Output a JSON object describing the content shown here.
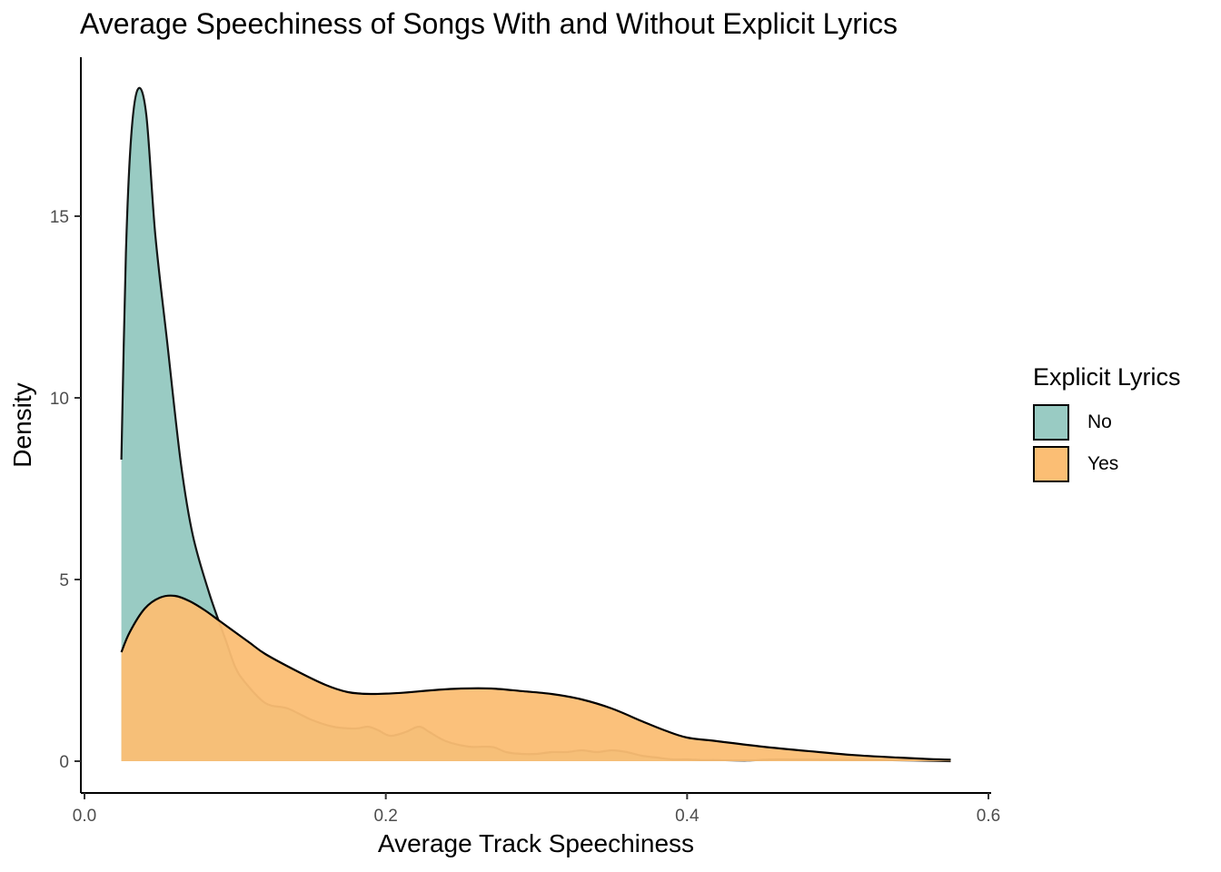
{
  "chart_data": {
    "type": "area",
    "title": "Average Speechiness of Songs With and Without Explicit Lyrics",
    "xlabel": "Average Track Speechiness",
    "ylabel": "Density",
    "xlim": [
      0.0,
      0.6
    ],
    "ylim": [
      0,
      19
    ],
    "x_ticks": [
      0.0,
      0.2,
      0.4,
      0.6
    ],
    "x_tick_labels": [
      "0.0",
      "0.2",
      "0.4",
      "0.6"
    ],
    "y_ticks": [
      0,
      5,
      10,
      15
    ],
    "y_tick_labels": [
      "0",
      "5",
      "10",
      "15"
    ],
    "grid": false,
    "legend": {
      "title": "Explicit Lyrics",
      "position": "right"
    },
    "series": [
      {
        "name": "No",
        "color": "#99cbc3",
        "opacity": 1.0,
        "points": [
          [
            0.0245,
            8.3
          ],
          [
            0.0275,
            14.0
          ],
          [
            0.031,
            17.2
          ],
          [
            0.0355,
            18.5
          ],
          [
            0.041,
            17.8
          ],
          [
            0.047,
            14.5
          ],
          [
            0.055,
            11.5
          ],
          [
            0.064,
            8.2
          ],
          [
            0.072,
            6.2
          ],
          [
            0.083,
            4.6
          ],
          [
            0.094,
            3.3
          ],
          [
            0.1,
            2.6
          ],
          [
            0.106,
            2.2
          ],
          [
            0.12,
            1.6
          ],
          [
            0.135,
            1.45
          ],
          [
            0.15,
            1.15
          ],
          [
            0.165,
            0.95
          ],
          [
            0.18,
            0.9
          ],
          [
            0.188,
            0.95
          ],
          [
            0.195,
            0.85
          ],
          [
            0.203,
            0.7
          ],
          [
            0.213,
            0.8
          ],
          [
            0.222,
            0.95
          ],
          [
            0.229,
            0.8
          ],
          [
            0.24,
            0.55
          ],
          [
            0.255,
            0.4
          ],
          [
            0.265,
            0.4
          ],
          [
            0.272,
            0.38
          ],
          [
            0.28,
            0.25
          ],
          [
            0.29,
            0.2
          ],
          [
            0.3,
            0.2
          ],
          [
            0.31,
            0.25
          ],
          [
            0.32,
            0.25
          ],
          [
            0.33,
            0.3
          ],
          [
            0.34,
            0.25
          ],
          [
            0.35,
            0.3
          ],
          [
            0.36,
            0.25
          ],
          [
            0.37,
            0.15
          ],
          [
            0.38,
            0.1
          ],
          [
            0.39,
            0.05
          ],
          [
            0.4,
            0.05
          ],
          [
            0.41,
            0.03
          ],
          [
            0.42,
            0.03
          ],
          [
            0.44,
            0.02
          ],
          [
            0.46,
            0.05
          ],
          [
            0.5,
            0.04
          ],
          [
            0.55,
            0.02
          ],
          [
            0.575,
            0.0
          ]
        ]
      },
      {
        "name": "Yes",
        "color": "#fbbe74",
        "opacity": 0.95,
        "points": [
          [
            0.0245,
            3.0
          ],
          [
            0.03,
            3.55
          ],
          [
            0.04,
            4.2
          ],
          [
            0.05,
            4.5
          ],
          [
            0.06,
            4.55
          ],
          [
            0.07,
            4.4
          ],
          [
            0.08,
            4.15
          ],
          [
            0.09,
            3.85
          ],
          [
            0.1,
            3.55
          ],
          [
            0.11,
            3.25
          ],
          [
            0.12,
            2.95
          ],
          [
            0.14,
            2.5
          ],
          [
            0.16,
            2.1
          ],
          [
            0.175,
            1.9
          ],
          [
            0.19,
            1.85
          ],
          [
            0.21,
            1.88
          ],
          [
            0.23,
            1.95
          ],
          [
            0.25,
            2.0
          ],
          [
            0.27,
            2.0
          ],
          [
            0.29,
            1.93
          ],
          [
            0.31,
            1.85
          ],
          [
            0.33,
            1.7
          ],
          [
            0.35,
            1.45
          ],
          [
            0.37,
            1.1
          ],
          [
            0.385,
            0.85
          ],
          [
            0.4,
            0.65
          ],
          [
            0.42,
            0.55
          ],
          [
            0.45,
            0.4
          ],
          [
            0.48,
            0.28
          ],
          [
            0.51,
            0.17
          ],
          [
            0.54,
            0.1
          ],
          [
            0.56,
            0.06
          ],
          [
            0.575,
            0.04
          ]
        ]
      }
    ]
  }
}
